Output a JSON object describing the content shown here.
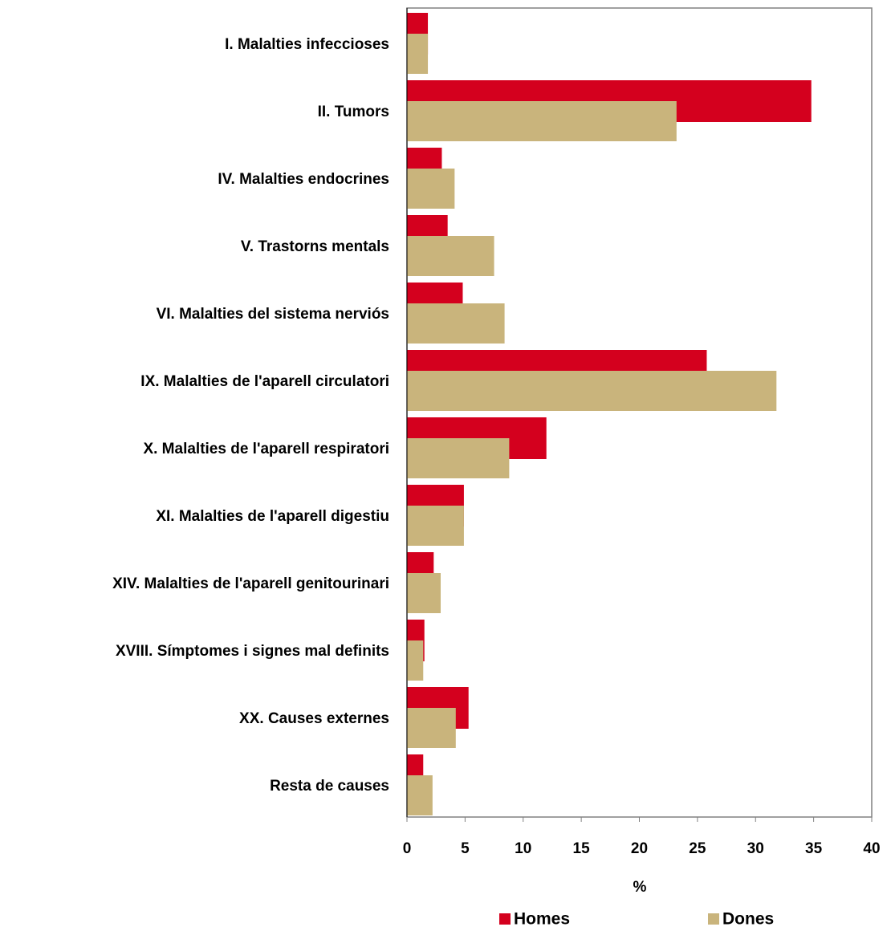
{
  "chart_data": {
    "type": "hbar",
    "x_label": "%",
    "categories": [
      "I.  Malalties infeccioses",
      "II. Tumors",
      "IV. Malalties endocrines",
      "V. Trastorns  mentals",
      "VI. Malalties del sistema  nerviós",
      "IX. Malalties de l'aparell circulatori",
      "X.  Malalties de l'aparell respiratori",
      "XI. Malalties de l'aparell digestiu",
      "XIV. Malalties de l'aparell genitourinari",
      "XVIII. Símptomes i signes  mal definits",
      "XX. Causes externes",
      "Resta de causes"
    ],
    "series": [
      {
        "name": "Homes",
        "color": "#d4001e",
        "values": [
          1.8,
          34.8,
          3.0,
          3.5,
          4.8,
          25.8,
          12.0,
          4.9,
          2.3,
          1.5,
          5.3,
          1.4
        ]
      },
      {
        "name": "Dones",
        "color": "#c9b47c",
        "values": [
          1.8,
          23.2,
          4.1,
          7.5,
          8.4,
          31.8,
          8.8,
          4.9,
          2.9,
          1.4,
          4.2,
          2.2
        ]
      }
    ],
    "xlim": [
      0,
      40
    ],
    "xticks": [
      0,
      5,
      10,
      15,
      20,
      25,
      30,
      35,
      40
    ]
  }
}
